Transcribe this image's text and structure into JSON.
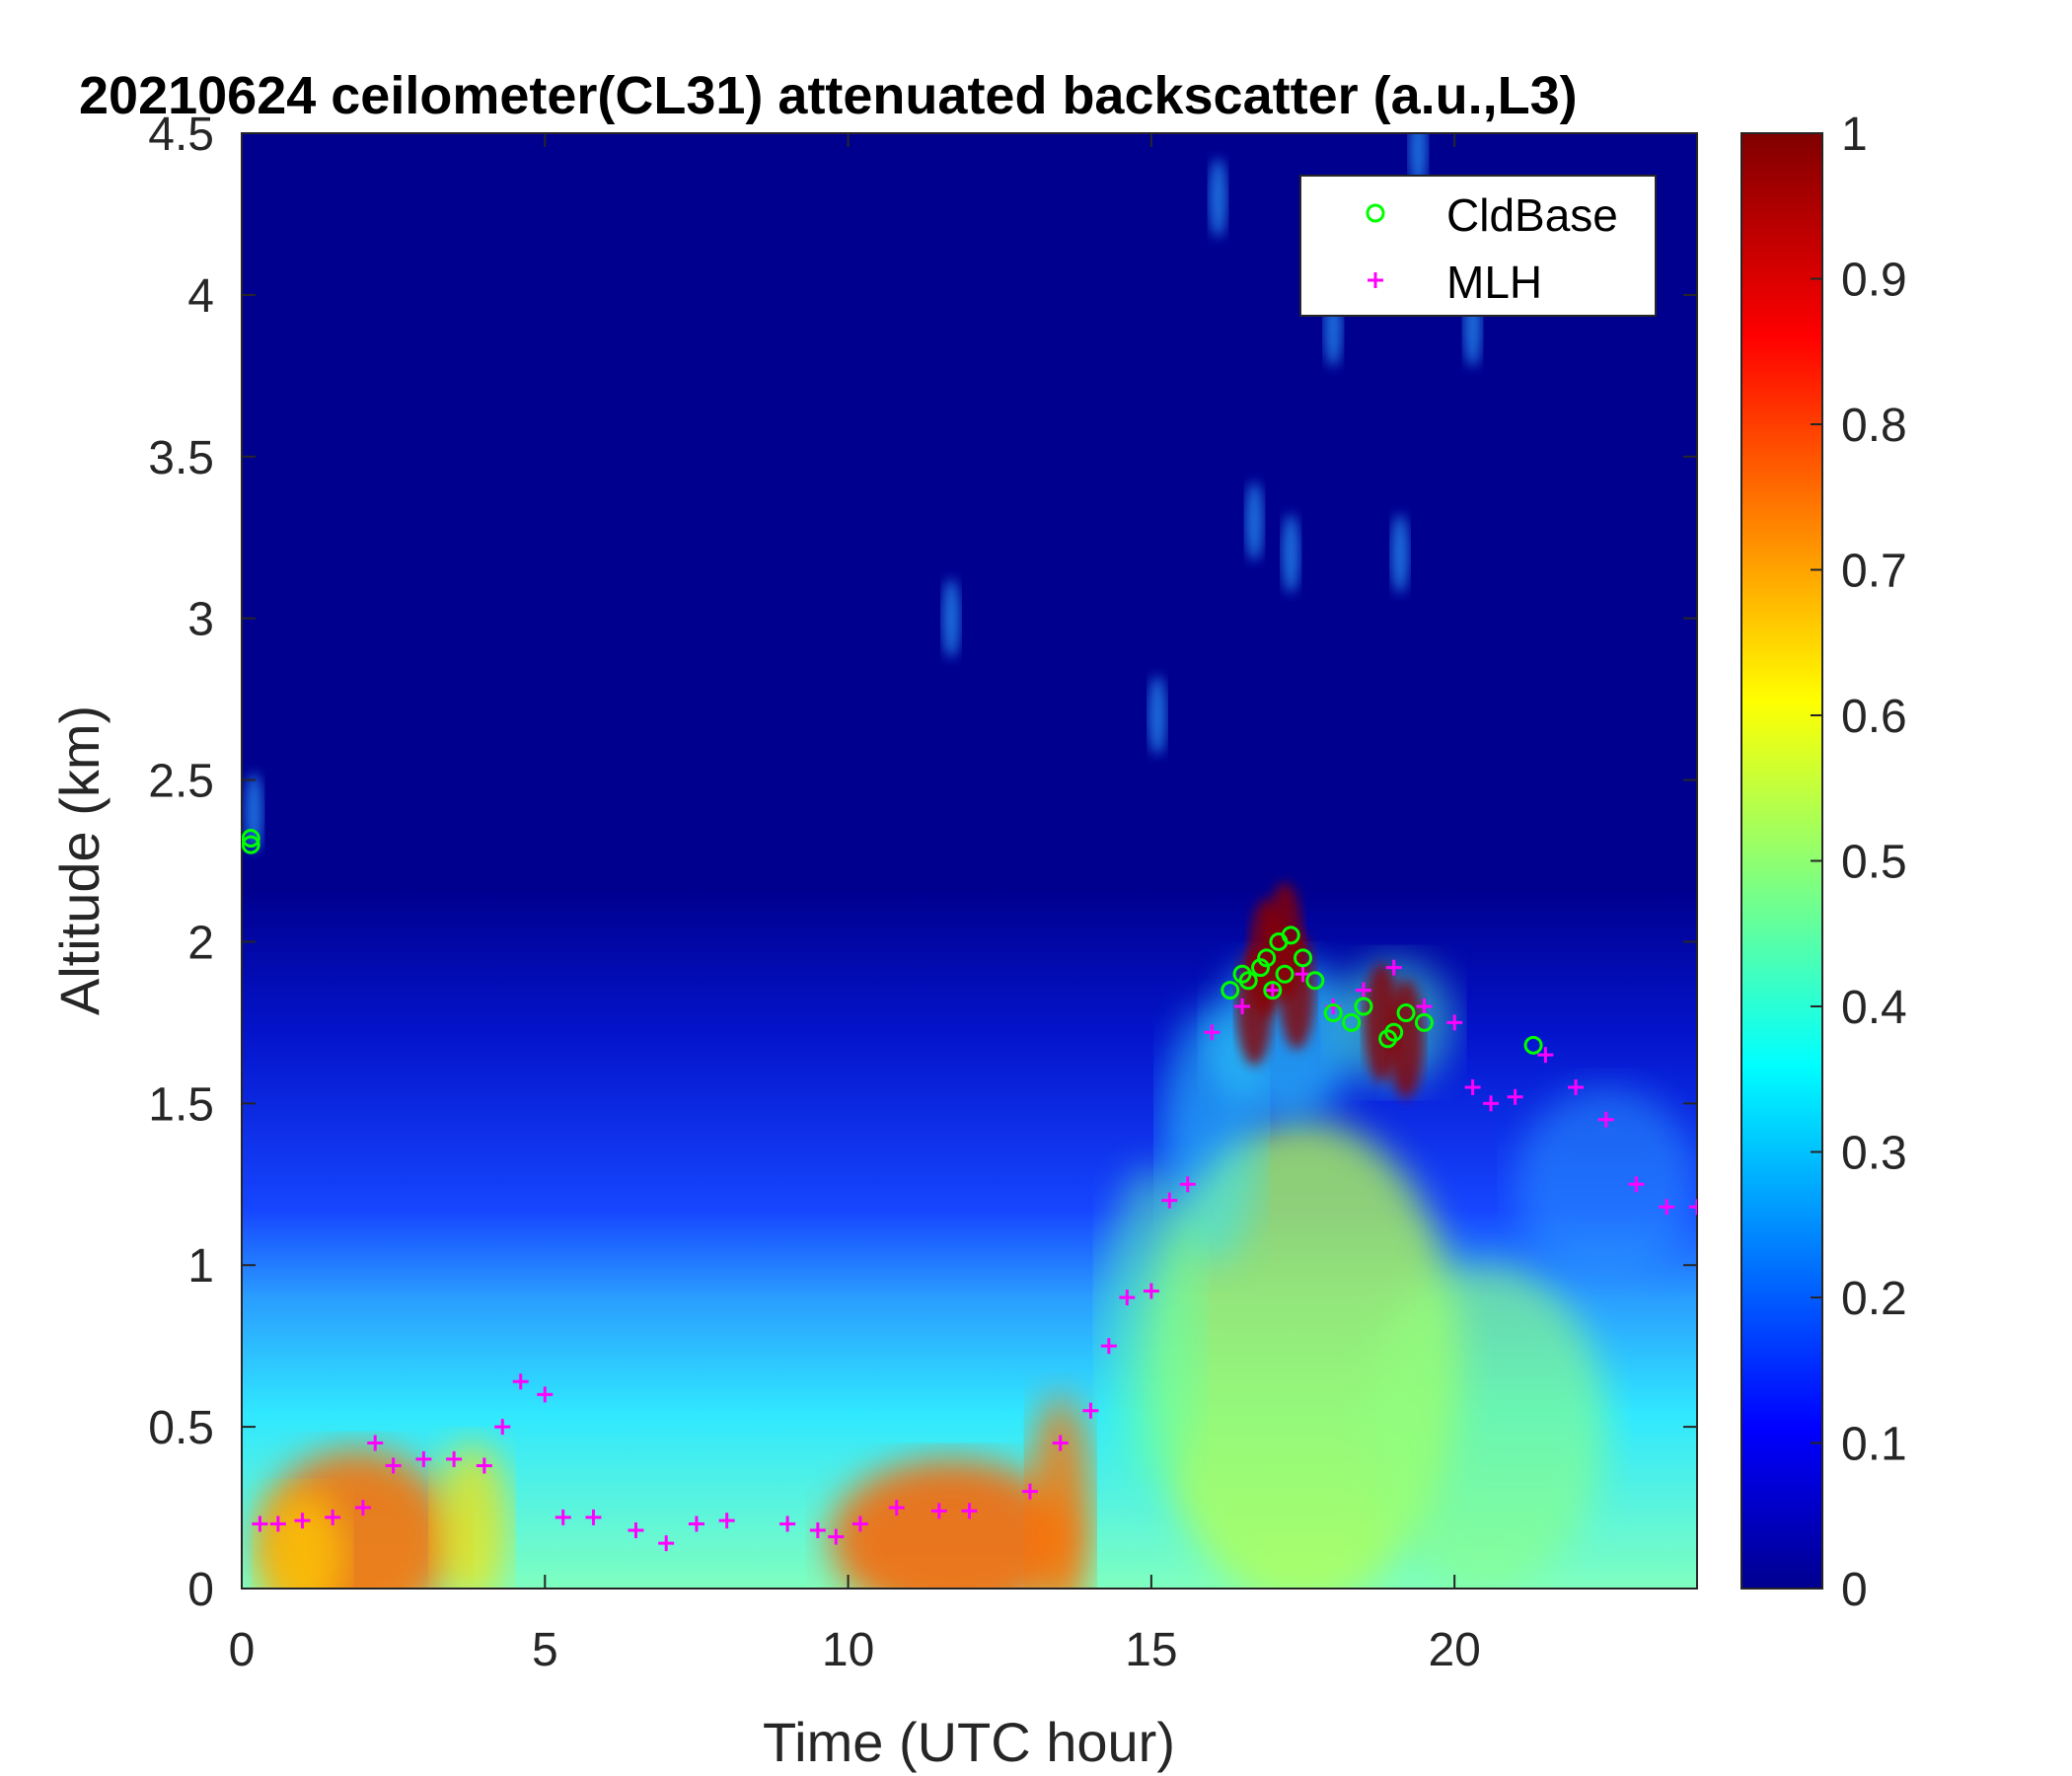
{
  "chart_data": {
    "type": "heatmap",
    "title": "20210624 ceilometer(CL31) attenuated backscatter (a.u.,L3)",
    "xlabel": "Time (UTC hour)",
    "ylabel": "Altitude (km)",
    "xlim": [
      0,
      24
    ],
    "ylim": [
      0,
      4.5
    ],
    "x_ticks": [
      "0",
      "5",
      "10",
      "15",
      "20"
    ],
    "y_ticks": [
      "0",
      "0.5",
      "1",
      "1.5",
      "2",
      "2.5",
      "3",
      "3.5",
      "4",
      "4.5"
    ],
    "colorbar": {
      "colormap": "jet",
      "range": [
        0,
        1
      ],
      "ticks": [
        "0",
        "0.1",
        "0.2",
        "0.3",
        "0.4",
        "0.5",
        "0.6",
        "0.7",
        "0.8",
        "0.9",
        "1"
      ]
    },
    "legend": {
      "position": "top-right",
      "entries": [
        {
          "name": "CldBase",
          "marker": "circle",
          "color": "#00ff00"
        },
        {
          "name": "MLH",
          "marker": "plus",
          "color": "#ff00ff"
        }
      ]
    },
    "grid": false,
    "series": [
      {
        "name": "MLH",
        "x": [
          0.3,
          0.6,
          1.0,
          1.5,
          2.0,
          2.2,
          2.5,
          3.0,
          3.5,
          4.0,
          4.3,
          4.6,
          5.0,
          5.3,
          5.8,
          6.5,
          7.0,
          7.5,
          8.0,
          9.0,
          9.5,
          9.8,
          10.2,
          10.8,
          11.5,
          12.0,
          13.0,
          13.5,
          14.0,
          14.3,
          14.6,
          15.0,
          15.3,
          15.6,
          16.0,
          16.5,
          17.0,
          17.5,
          18.0,
          18.5,
          19.0,
          19.5,
          20.0,
          20.3,
          20.6,
          21.0,
          21.5,
          22.0,
          22.5,
          23.0,
          23.5,
          24.0
        ],
        "y": [
          0.2,
          0.2,
          0.21,
          0.22,
          0.25,
          0.45,
          0.38,
          0.4,
          0.4,
          0.38,
          0.5,
          0.64,
          0.6,
          0.22,
          0.22,
          0.18,
          0.14,
          0.2,
          0.21,
          0.2,
          0.18,
          0.16,
          0.2,
          0.25,
          0.24,
          0.24,
          0.3,
          0.45,
          0.55,
          0.75,
          0.9,
          0.92,
          1.2,
          1.25,
          1.72,
          1.8,
          1.85,
          1.9,
          1.8,
          1.85,
          1.92,
          1.8,
          1.75,
          1.55,
          1.5,
          1.52,
          1.65,
          1.55,
          1.45,
          1.25,
          1.18,
          1.18
        ]
      },
      {
        "name": "CldBase",
        "x": [
          0.15,
          0.15,
          16.3,
          16.5,
          16.6,
          16.8,
          16.9,
          17.0,
          17.1,
          17.2,
          17.3,
          17.5,
          17.7,
          18.0,
          18.3,
          18.5,
          18.9,
          19.0,
          19.2,
          19.5,
          21.3
        ],
        "y": [
          2.32,
          2.3,
          1.85,
          1.9,
          1.88,
          1.92,
          1.95,
          1.85,
          2.0,
          1.9,
          2.02,
          1.95,
          1.88,
          1.78,
          1.75,
          1.8,
          1.7,
          1.72,
          1.78,
          1.75,
          1.68
        ]
      }
    ]
  }
}
